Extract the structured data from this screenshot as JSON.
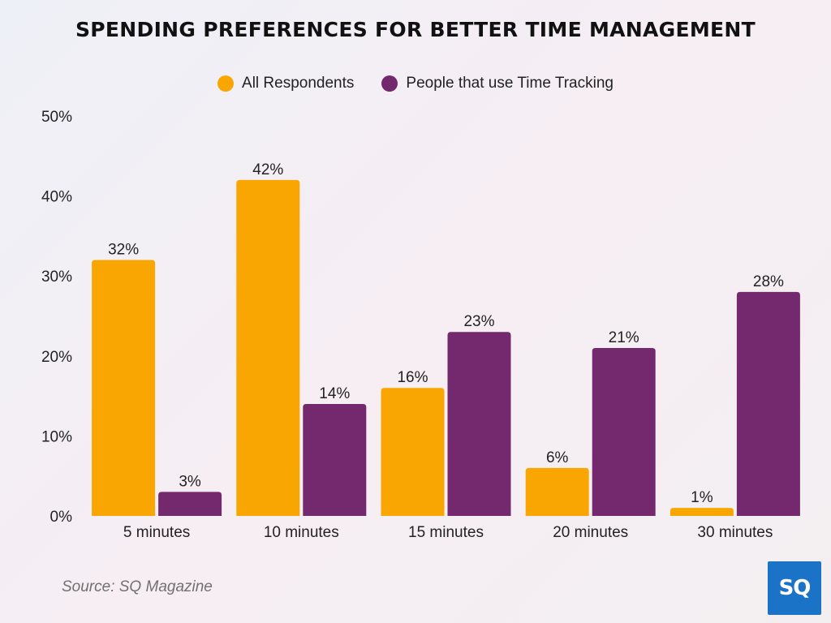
{
  "chart_data": {
    "type": "bar",
    "title": "SPENDING PREFERENCES FOR BETTER TIME MANAGEMENT",
    "categories": [
      "5 minutes",
      "10 minutes",
      "15 minutes",
      "20 minutes",
      "30 minutes"
    ],
    "series": [
      {
        "name": "All Respondents",
        "color": "#f9a603",
        "values": [
          32,
          42,
          16,
          6,
          1
        ],
        "labels": [
          "32%",
          "42%",
          "16%",
          "6%",
          "1%"
        ]
      },
      {
        "name": "People that use Time Tracking",
        "color": "#74296e",
        "values": [
          3,
          14,
          23,
          21,
          28
        ],
        "labels": [
          "3%",
          "14%",
          "23%",
          "21%",
          "28%"
        ]
      }
    ],
    "ylim": [
      0,
      50
    ],
    "yticks": [
      "0%",
      "10%",
      "20%",
      "30%",
      "40%",
      "50%"
    ],
    "xlabel": "",
    "ylabel": "",
    "grid": false,
    "legend": "top"
  },
  "source": "Source: SQ Magazine",
  "logo": "SQ"
}
